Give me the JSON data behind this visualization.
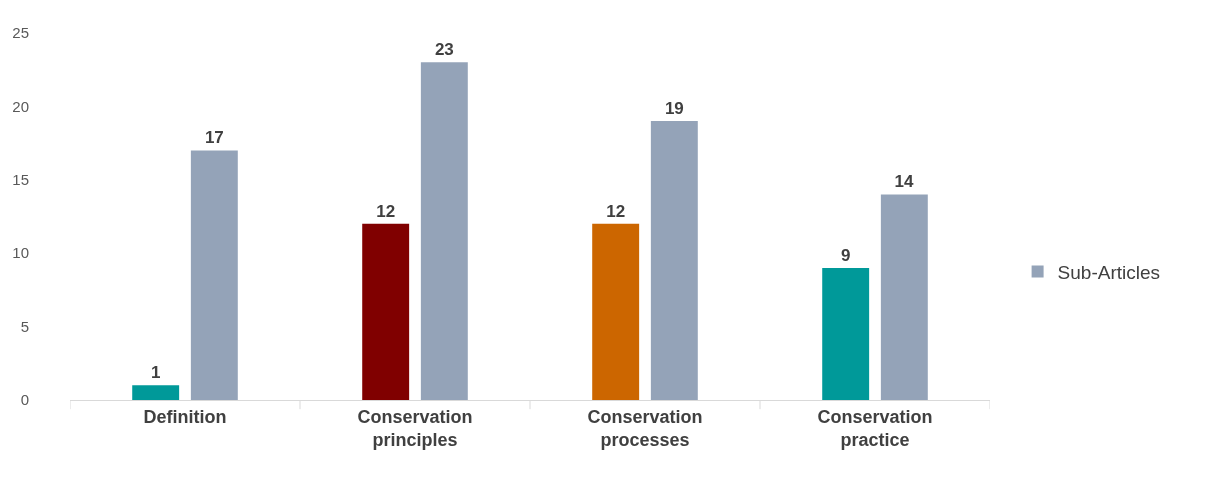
{
  "chart_data": {
    "type": "bar",
    "categories": [
      "Definition",
      "Conservation principles",
      "Conservation processes",
      "Conservation practice"
    ],
    "series": [
      {
        "colors": [
          "#009999",
          "#800000",
          "#cc6600",
          "#009999"
        ],
        "values": [
          1,
          12,
          12,
          9
        ]
      },
      {
        "name": "Sub-Articles",
        "color": "#94a3b8",
        "values": [
          17,
          23,
          19,
          14
        ]
      }
    ],
    "ylim": [
      0,
      25
    ],
    "yticks": [
      0,
      5,
      10,
      15,
      20,
      25
    ],
    "grid": false,
    "legend": "right",
    "data_labels": true
  }
}
